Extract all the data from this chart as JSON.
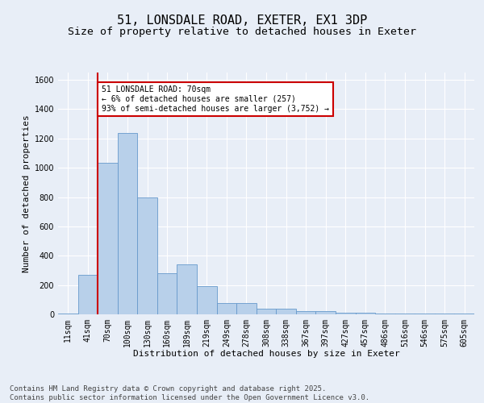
{
  "title1": "51, LONSDALE ROAD, EXETER, EX1 3DP",
  "title2": "Size of property relative to detached houses in Exeter",
  "xlabel": "Distribution of detached houses by size in Exeter",
  "ylabel": "Number of detached properties",
  "categories": [
    "11sqm",
    "41sqm",
    "70sqm",
    "100sqm",
    "130sqm",
    "160sqm",
    "189sqm",
    "219sqm",
    "249sqm",
    "278sqm",
    "308sqm",
    "338sqm",
    "367sqm",
    "397sqm",
    "427sqm",
    "457sqm",
    "486sqm",
    "516sqm",
    "546sqm",
    "575sqm",
    "605sqm"
  ],
  "values": [
    5,
    270,
    1035,
    1240,
    800,
    280,
    340,
    190,
    75,
    75,
    40,
    40,
    20,
    20,
    10,
    10,
    5,
    5,
    5,
    5,
    5
  ],
  "bar_color": "#b8d0ea",
  "bar_edge_color": "#6699cc",
  "highlight_index": 2,
  "vline_color": "#cc0000",
  "annotation_text": "51 LONSDALE ROAD: 70sqm\n← 6% of detached houses are smaller (257)\n93% of semi-detached houses are larger (3,752) →",
  "annotation_box_color": "#ffffff",
  "annotation_box_edge": "#cc0000",
  "ylim": [
    0,
    1650
  ],
  "yticks": [
    0,
    200,
    400,
    600,
    800,
    1000,
    1200,
    1400,
    1600
  ],
  "background_color": "#e8eef7",
  "grid_color": "#ffffff",
  "footer": "Contains HM Land Registry data © Crown copyright and database right 2025.\nContains public sector information licensed under the Open Government Licence v3.0.",
  "title_fontsize": 11,
  "subtitle_fontsize": 9.5,
  "axis_label_fontsize": 8,
  "tick_fontsize": 7,
  "annotation_fontsize": 7,
  "footer_fontsize": 6.5
}
